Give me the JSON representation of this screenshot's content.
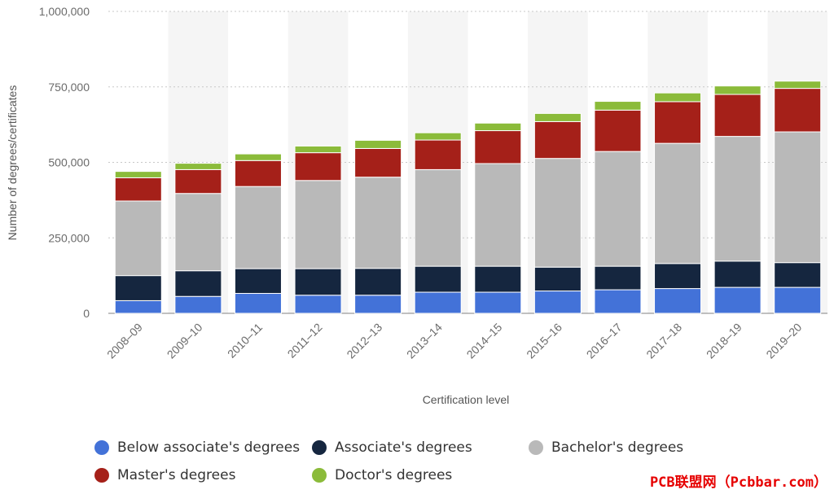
{
  "chart_data": {
    "type": "bar",
    "stacked": true,
    "xlabel": "Certification level",
    "ylabel": "Number of degrees/certificates",
    "ylim": [
      0,
      1000000
    ],
    "yticks": [
      0,
      250000,
      500000,
      750000,
      1000000
    ],
    "ytick_labels": [
      "0",
      "250,000",
      "500,000",
      "750,000",
      "1,000,000"
    ],
    "grid": true,
    "legend_position": "bottom",
    "categories": [
      "2008–09",
      "2009–10",
      "2010–11",
      "2011–12",
      "2012–13",
      "2013–14",
      "2014–15",
      "2015–16",
      "2016–17",
      "2017–18",
      "2018–19",
      "2019–20"
    ],
    "series": [
      {
        "name": "Below associate's degrees",
        "color": "#4372d8",
        "values": [
          42000,
          56000,
          66000,
          60000,
          60000,
          70000,
          70000,
          74000,
          78000,
          82000,
          86000,
          86000
        ]
      },
      {
        "name": "Associate's degrees",
        "color": "#15263f",
        "values": [
          83000,
          85000,
          82000,
          88000,
          89000,
          86000,
          86000,
          79000,
          78000,
          83000,
          87000,
          82000
        ]
      },
      {
        "name": "Bachelor's degrees",
        "color": "#b9b9b9",
        "values": [
          247000,
          256000,
          272000,
          292000,
          302000,
          320000,
          340000,
          360000,
          380000,
          398000,
          413000,
          433000
        ]
      },
      {
        "name": "Master's degrees",
        "color": "#a52019",
        "values": [
          77000,
          79000,
          86000,
          92000,
          95000,
          98000,
          109000,
          122000,
          137000,
          138000,
          139000,
          144000
        ]
      },
      {
        "name": "Doctor's degrees",
        "color": "#8bbb3a",
        "values": [
          21000,
          21000,
          22000,
          22000,
          27000,
          24000,
          25000,
          27000,
          29000,
          29000,
          28000,
          24000
        ]
      }
    ]
  },
  "watermark": "PCB联盟网（Pcbbar.com）"
}
